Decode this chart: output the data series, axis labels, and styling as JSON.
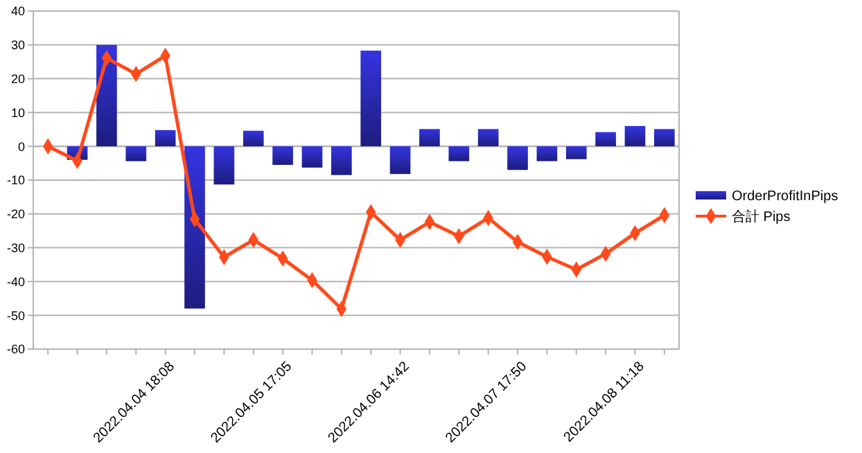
{
  "chart_data": {
    "type": "bar",
    "categories": [
      null,
      null,
      null,
      null,
      "2022.04.04 18:08",
      null,
      null,
      null,
      "2022.04.05 17:05",
      null,
      null,
      null,
      "2022.04.06 14:42",
      null,
      null,
      null,
      "2022.04.07 17:50",
      null,
      null,
      null,
      "2022.04.08 11:18",
      null
    ],
    "series": [
      {
        "name": "OrderProfitInPips",
        "type": "bar",
        "color": "#3434e0",
        "values": [
          0,
          -4,
          30,
          -4.4,
          4.8,
          -48,
          -11.3,
          4.6,
          -5.5,
          -6.3,
          -8.5,
          28.3,
          -8.2,
          5.1,
          -4.4,
          5.1,
          -7,
          -4.4,
          -3.8,
          4.2,
          6,
          5.1
        ]
      },
      {
        "name": "合計 Pips",
        "type": "line",
        "color": "#ff4a1c",
        "marker": "diamond",
        "values": [
          0,
          -4.3,
          26.1,
          21.4,
          26.8,
          -21.6,
          -32.8,
          -27.7,
          -33.2,
          -39.6,
          -48.1,
          -19.5,
          -27.7,
          -22.4,
          -26.6,
          -21.2,
          -28.3,
          -32.7,
          -36.5,
          -31.8,
          -25.7,
          -20.4
        ]
      }
    ],
    "ylim": [
      -60,
      40
    ],
    "yticks": [
      -60,
      -50,
      -40,
      -30,
      -20,
      -10,
      0,
      10,
      20,
      30,
      40
    ],
    "grid": "y",
    "legend": "right"
  }
}
